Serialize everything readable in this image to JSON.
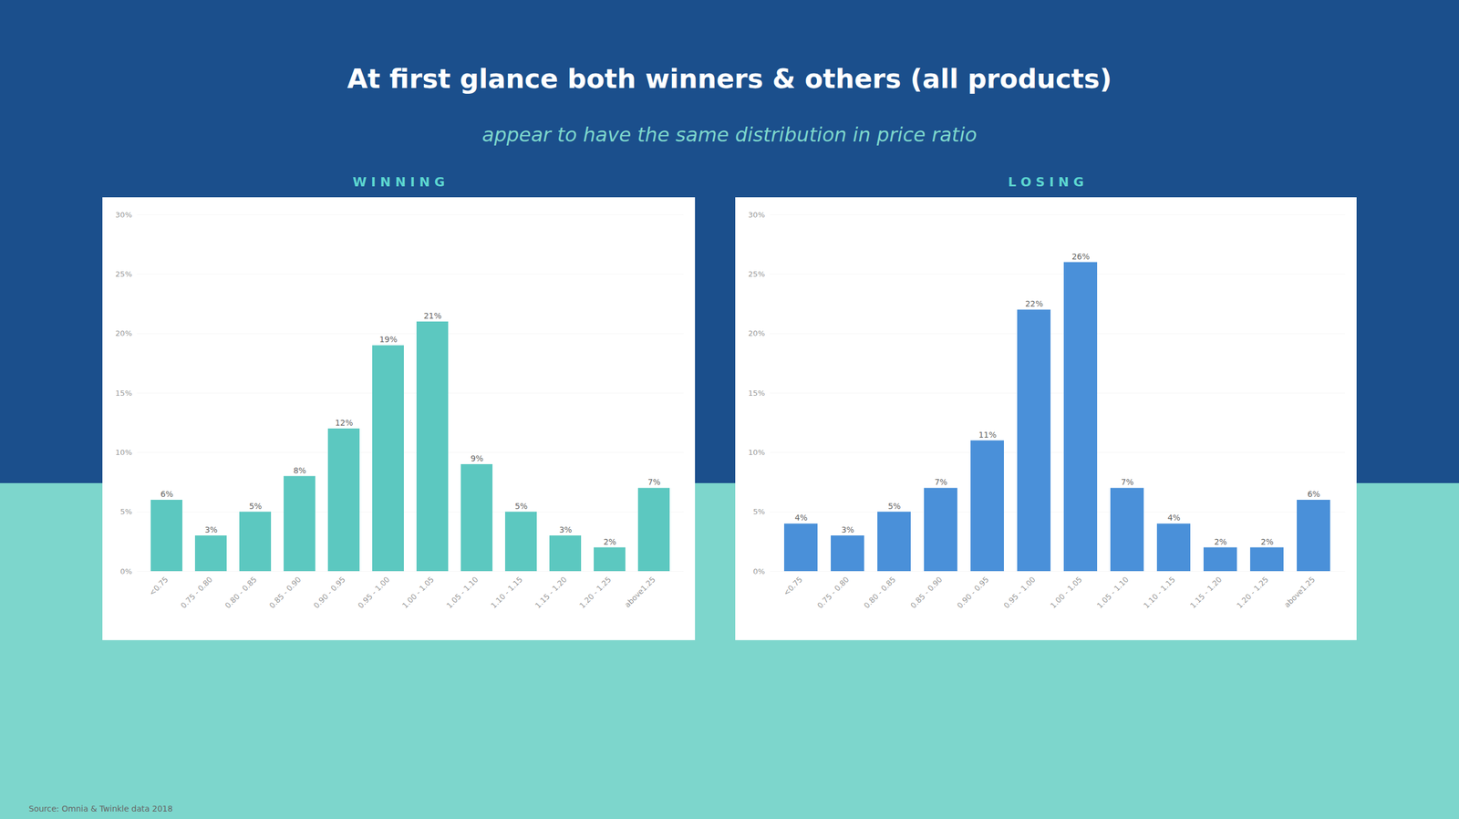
{
  "title": "At first glance both winners & others (all products)",
  "subtitle": "appear to have the same distribution in price ratio",
  "annotations": [
    "Source: Omnia & Twinkle data 2018"
  ],
  "chart_data": [
    {
      "type": "bar",
      "title": "W I N N I N G",
      "categories": [
        "<0.75",
        "0.75 - 0.80",
        "0.80 - 0.85",
        "0.85 - 0.90",
        "0.90 - 0.95",
        "0.95 - 1.00",
        "1.00 - 1.05",
        "1.05 - 1.10",
        "1.10 - 1.15",
        "1.15 - 1.20",
        "1.20 - 1.25",
        "above1.25"
      ],
      "values": [
        6,
        3,
        5,
        8,
        12,
        19,
        21,
        9,
        5,
        3,
        2,
        7
      ],
      "value_labels": [
        "6%",
        "3%",
        "5%",
        "8%",
        "12%",
        "19%",
        "21%",
        "9%",
        "5%",
        "3%",
        "2%",
        "7%"
      ],
      "color": "#5cc8c0",
      "ylim": [
        0,
        30
      ],
      "yticks": [
        {
          "value": 0,
          "label": "0%"
        },
        {
          "value": 5,
          "label": "5%"
        },
        {
          "value": 10,
          "label": "10%"
        },
        {
          "value": 15,
          "label": "15%"
        },
        {
          "value": 20,
          "label": "20%"
        },
        {
          "value": 25,
          "label": "25%"
        },
        {
          "value": 30,
          "label": "30%"
        }
      ],
      "grid": true,
      "data_labels": true
    },
    {
      "type": "bar",
      "title": "L O S I N G",
      "categories": [
        "<0.75",
        "0.75 - 0.80",
        "0.80 - 0.85",
        "0.85 - 0.90",
        "0.90 - 0.95",
        "0.95 - 1.00",
        "1.00 - 1.05",
        "1.05 - 1.10",
        "1.10 - 1.15",
        "1.15 - 1.20",
        "1.20 - 1.25",
        "above1.25"
      ],
      "values": [
        4,
        3,
        5,
        7,
        11,
        22,
        26,
        7,
        4,
        2,
        2,
        6
      ],
      "value_labels": [
        "4%",
        "3%",
        "5%",
        "7%",
        "11%",
        "22%",
        "26%",
        "7%",
        "4%",
        "2%",
        "2%",
        "6%"
      ],
      "color": "#4a90d9",
      "ylim": [
        0,
        30
      ],
      "yticks": [
        {
          "value": 0,
          "label": "0%"
        },
        {
          "value": 5,
          "label": "5%"
        },
        {
          "value": 10,
          "label": "10%"
        },
        {
          "value": 15,
          "label": "15%"
        },
        {
          "value": 20,
          "label": "20%"
        },
        {
          "value": 25,
          "label": "25%"
        },
        {
          "value": 30,
          "label": "30%"
        }
      ],
      "grid": true,
      "data_labels": true
    }
  ]
}
